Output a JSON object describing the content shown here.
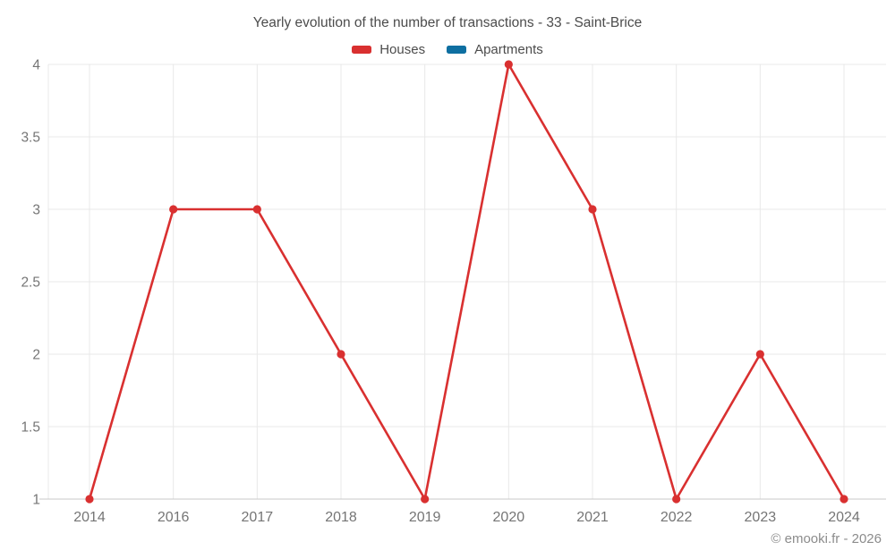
{
  "title": "Yearly evolution of the number of transactions - 33 - Saint-Brice",
  "footer": {
    "copyright": "© emooki.fr - 2026"
  },
  "colors": {
    "houses": "#d93030",
    "apartments": "#0e6fa1",
    "grid": "#e8e8e8",
    "axis_line": "#c9c9c9",
    "axis_text": "#757575",
    "title_text": "#4c4c4c",
    "footer_text": "#8c8c8c"
  },
  "chart_data": {
    "type": "line",
    "title": "Yearly evolution of the number of transactions - 33 - Saint-Brice",
    "categories": [
      "2014",
      "2016",
      "2017",
      "2018",
      "2019",
      "2020",
      "2021",
      "2022",
      "2023",
      "2024"
    ],
    "series": [
      {
        "name": "Houses",
        "color": "#d93030",
        "values": [
          1,
          3,
          3,
          2,
          1,
          4,
          3,
          1,
          2,
          1
        ]
      },
      {
        "name": "Apartments",
        "color": "#0e6fa1",
        "values": []
      }
    ],
    "xlabel": "",
    "ylabel": "",
    "ylim": [
      1,
      4
    ],
    "yticks": [
      1,
      1.5,
      2,
      2.5,
      3,
      3.5,
      4
    ],
    "grid": true,
    "legend_position": "top"
  }
}
